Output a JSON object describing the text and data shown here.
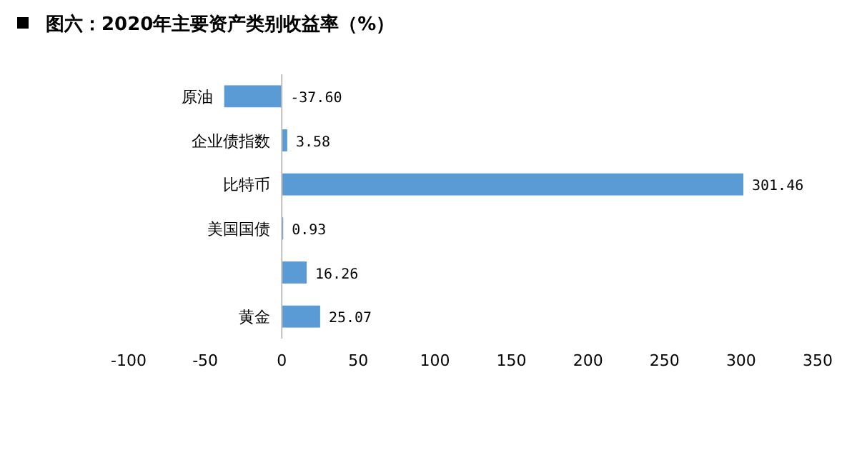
{
  "chart_data": {
    "type": "bar",
    "orientation": "horizontal",
    "title": "图六：2020年主要资产类别收益率（%）",
    "categories": [
      "原油",
      "企业债指数",
      "比特币",
      "美国国债",
      null,
      "黄金"
    ],
    "values": [
      -37.6,
      3.58,
      301.46,
      0.93,
      16.26,
      25.07
    ],
    "value_labels": [
      "-37.60",
      "3.58",
      "301.46",
      "0.93",
      "16.26",
      "25.07"
    ],
    "color": "#5b9bd5",
    "xlim": [
      -100,
      350
    ],
    "xticks": [
      -100,
      -50,
      0,
      50,
      100,
      150,
      200,
      250,
      300,
      350
    ],
    "grid": false
  }
}
